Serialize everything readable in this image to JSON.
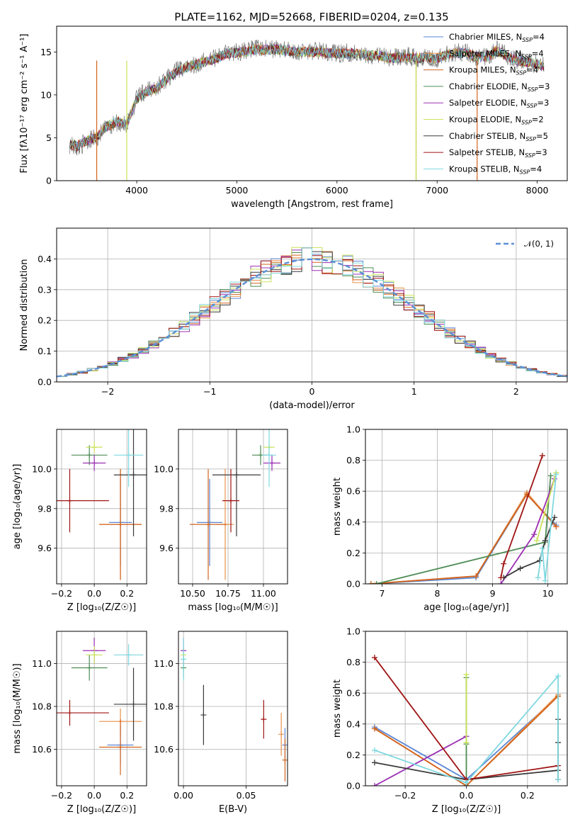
{
  "title": "PLATE=1162, MJD=52668, FIBERID=0204, z=0.135",
  "colors": {
    "Chabrier MILES": "#5b86d4",
    "Salpeter MILES": "#e8914a",
    "Kroupa MILES": "#d2641e",
    "Chabrier ELODIE": "#4e8c54",
    "Salpeter ELODIE": "#9b2fb4",
    "Kroupa ELODIE": "#c9e35a",
    "Chabrier STELIB": "#3a3a3a",
    "Salpeter STELIB": "#a01414",
    "Kroupa STELIB": "#7fd8e0",
    "Normal": "#5b8fd6",
    "grid": "#b0b0b0"
  },
  "legend": [
    {
      "label": "Chabrier MILES, N",
      "sub": "SSP",
      "tail": "=4",
      "color": "Chabrier MILES"
    },
    {
      "label": "Salpeter MILES, N",
      "sub": "SSP",
      "tail": "=4",
      "color": "Salpeter MILES"
    },
    {
      "label": "Kroupa MILES, N",
      "sub": "SSP",
      "tail": "=4",
      "color": "Kroupa MILES"
    },
    {
      "label": "Chabrier ELODIE, N",
      "sub": "SSP",
      "tail": "=3",
      "color": "Chabrier ELODIE"
    },
    {
      "label": "Salpeter ELODIE, N",
      "sub": "SSP",
      "tail": "=3",
      "color": "Salpeter ELODIE"
    },
    {
      "label": "Kroupa ELODIE, N",
      "sub": "SSP",
      "tail": "=2",
      "color": "Kroupa ELODIE"
    },
    {
      "label": "Chabrier STELIB, N",
      "sub": "SSP",
      "tail": "=5",
      "color": "Chabrier STELIB"
    },
    {
      "label": "Salpeter STELIB, N",
      "sub": "SSP",
      "tail": "=3",
      "color": "Salpeter STELIB"
    },
    {
      "label": "Kroupa STELIB, N",
      "sub": "SSP",
      "tail": "=4",
      "color": "Kroupa STELIB"
    }
  ],
  "chart_data": [
    {
      "id": "spectrum",
      "type": "line",
      "xlabel": "wavelength [Angstrom, rest frame]",
      "ylabel": "Flux [fλ10⁻¹⁷ erg cm⁻² s⁻¹ A⁻¹]",
      "xlim": [
        3200,
        8300
      ],
      "ylim": [
        0,
        18
      ],
      "xticks": [
        4000,
        5000,
        6000,
        7000,
        8000
      ],
      "yticks": [
        0,
        5,
        10,
        15
      ],
      "x": [
        3330,
        3400,
        3500,
        3600,
        3700,
        3800,
        3900,
        3950,
        4000,
        4100,
        4200,
        4300,
        4400,
        4500,
        4600,
        4700,
        4800,
        4900,
        5000,
        5100,
        5200,
        5300,
        5400,
        5500,
        5600,
        5700,
        5800,
        5900,
        6000,
        6100,
        6200,
        6300,
        6400,
        6500,
        6600,
        6700,
        6800,
        6900,
        7000,
        7100,
        7200,
        7300,
        7400,
        7500,
        7600,
        7700,
        7800,
        7900,
        8000,
        8070
      ],
      "flux_data": [
        4.2,
        3.8,
        4.6,
        5.0,
        6.2,
        6.8,
        6.4,
        8.0,
        9.6,
        10.5,
        10.9,
        11.9,
        12.8,
        13.3,
        13.6,
        14.0,
        14.4,
        14.9,
        15.0,
        15.2,
        15.4,
        15.3,
        15.4,
        15.2,
        15.0,
        15.1,
        15.1,
        15.0,
        14.8,
        14.9,
        14.9,
        14.6,
        14.7,
        14.3,
        14.4,
        14.5,
        14.3,
        14.5,
        14.2,
        14.8,
        15.0,
        14.9,
        14.4,
        14.5,
        15.3,
        14.6,
        14.0,
        13.8,
        13.5,
        13.3
      ],
      "model_fit": [
        4.3,
        4.0,
        4.7,
        5.1,
        6.3,
        6.9,
        6.6,
        8.1,
        9.5,
        10.4,
        10.8,
        11.8,
        12.7,
        13.2,
        13.6,
        13.9,
        14.3,
        14.8,
        14.9,
        15.1,
        15.3,
        15.2,
        15.3,
        15.1,
        15.0,
        15.0,
        15.0,
        14.9,
        14.8,
        14.8,
        14.8,
        14.6,
        14.6,
        14.3,
        14.3,
        14.4,
        14.3,
        14.4,
        14.2,
        14.7,
        14.9,
        14.8,
        14.4,
        14.4,
        15.2,
        14.5,
        14.0,
        13.8,
        13.5,
        13.3
      ],
      "masked_spikes": [
        {
          "x": 3600,
          "color": "Kroupa MILES"
        },
        {
          "x": 3900,
          "color": "Kroupa ELODIE"
        },
        {
          "x": 6790,
          "color": "Kroupa MILES"
        },
        {
          "x": 6790,
          "color": "Kroupa ELODIE"
        },
        {
          "x": 7400,
          "color": "Kroupa MILES"
        }
      ]
    },
    {
      "id": "residuals",
      "type": "histogram",
      "xlabel": "(data-model)/error",
      "ylabel": "Normed distribution",
      "xlim": [
        -2.5,
        2.5
      ],
      "ylim": [
        0,
        0.5
      ],
      "xticks": [
        -2,
        -1,
        0,
        1,
        2
      ],
      "yticks": [
        0.0,
        0.1,
        0.2,
        0.3,
        0.4
      ],
      "bin_width": 0.1,
      "normal_label": "𝒩(0, 1)"
    },
    {
      "id": "age_vs_Z",
      "type": "errorbar",
      "xlabel": "Z [log₁₀(Z/Z☉)]",
      "ylabel": "age  [log₁₀(age/yr)]",
      "xlim": [
        -0.23,
        0.32
      ],
      "ylim": [
        9.42,
        10.2
      ],
      "xticks": [
        -0.2,
        0.0,
        0.2
      ],
      "yticks": [
        9.6,
        9.8,
        10.0
      ],
      "points": [
        {
          "model": "Chabrier MILES",
          "x": 0.16,
          "y": 9.73,
          "xerr": 0.07,
          "yerr": 0.22
        },
        {
          "model": "Salpeter MILES",
          "x": 0.16,
          "y": 9.72,
          "xerr": 0.13,
          "yerr": 0.28
        },
        {
          "model": "Kroupa MILES",
          "x": 0.16,
          "y": 9.72,
          "xerr": 0.13,
          "yerr": 0.28
        },
        {
          "model": "Chabrier ELODIE",
          "x": -0.03,
          "y": 10.07,
          "xerr": 0.11,
          "yerr": 0.05
        },
        {
          "model": "Salpeter ELODIE",
          "x": 0.0,
          "y": 10.03,
          "xerr": 0.07,
          "yerr": 0.04
        },
        {
          "model": "Kroupa ELODIE",
          "x": 0.0,
          "y": 10.11,
          "xerr": 0.05,
          "yerr": 0.03
        },
        {
          "model": "Chabrier STELIB",
          "x": 0.24,
          "y": 9.97,
          "xerr": 0.12,
          "yerr": 0.31
        },
        {
          "model": "Salpeter STELIB",
          "x": -0.15,
          "y": 9.84,
          "xerr": 0.24,
          "yerr": 0.16
        },
        {
          "model": "Kroupa STELIB",
          "x": 0.21,
          "y": 10.07,
          "xerr": 0.09,
          "yerr": 0.16
        }
      ]
    },
    {
      "id": "age_vs_mass",
      "type": "errorbar",
      "xlabel": "mass [log₁₀(M/M☉)]",
      "ylabel": "",
      "xlim": [
        10.4,
        11.17
      ],
      "ylim": [
        9.42,
        10.2
      ],
      "xticks": [
        10.5,
        10.75,
        11.0
      ],
      "yticks": [
        9.6,
        9.8,
        10.0
      ],
      "points": [
        {
          "model": "Chabrier MILES",
          "x": 10.62,
          "y": 9.73,
          "xerr": 0.09,
          "yerr": 0.22
        },
        {
          "model": "Salpeter MILES",
          "x": 10.73,
          "y": 9.72,
          "xerr": 0.06,
          "yerr": 0.28
        },
        {
          "model": "Kroupa MILES",
          "x": 10.61,
          "y": 9.72,
          "xerr": 0.13,
          "yerr": 0.28
        },
        {
          "model": "Chabrier ELODIE",
          "x": 10.98,
          "y": 10.07,
          "xerr": 0.06,
          "yerr": 0.05
        },
        {
          "model": "Salpeter ELODIE",
          "x": 11.06,
          "y": 10.03,
          "xerr": 0.06,
          "yerr": 0.04
        },
        {
          "model": "Kroupa ELODIE",
          "x": 11.04,
          "y": 10.11,
          "xerr": 0.04,
          "yerr": 0.03
        },
        {
          "model": "Chabrier STELIB",
          "x": 10.81,
          "y": 9.97,
          "xerr": 0.17,
          "yerr": 0.31
        },
        {
          "model": "Salpeter STELIB",
          "x": 10.77,
          "y": 9.84,
          "xerr": 0.06,
          "yerr": 0.16
        },
        {
          "model": "Kroupa STELIB",
          "x": 11.04,
          "y": 10.07,
          "xerr": 0.05,
          "yerr": 0.16
        }
      ]
    },
    {
      "id": "massweight_vs_age",
      "type": "line",
      "xlabel": "age  [log₁₀(age/yr)]",
      "ylabel": "mass weight",
      "xlim": [
        6.7,
        10.35
      ],
      "ylim": [
        0,
        1.0
      ],
      "xticks": [
        7,
        8,
        9,
        10
      ],
      "yticks": [
        0.0,
        0.2,
        0.4,
        0.6,
        0.8,
        1.0
      ],
      "series": [
        {
          "model": "Chabrier MILES",
          "x": [
            6.8,
            8.7,
            9.62,
            10.15
          ],
          "y": [
            0.0,
            0.04,
            0.58,
            0.38
          ]
        },
        {
          "model": "Salpeter MILES",
          "x": [
            6.8,
            8.7,
            9.62,
            10.15
          ],
          "y": [
            0.0,
            0.05,
            0.59,
            0.37
          ]
        },
        {
          "model": "Kroupa MILES",
          "x": [
            6.8,
            8.7,
            9.62,
            10.15
          ],
          "y": [
            0.0,
            0.05,
            0.58,
            0.37
          ]
        },
        {
          "model": "Chabrier ELODIE",
          "x": [
            6.9,
            9.95,
            10.05
          ],
          "y": [
            0.0,
            0.27,
            0.7
          ]
        },
        {
          "model": "Salpeter ELODIE",
          "x": [
            9.15,
            9.75,
            10.12
          ],
          "y": [
            0.0,
            0.32,
            0.68
          ]
        },
        {
          "model": "Kroupa ELODIE",
          "x": [
            9.8,
            10.15
          ],
          "y": [
            0.28,
            0.72
          ]
        },
        {
          "model": "Chabrier STELIB",
          "x": [
            9.2,
            9.5,
            9.85,
            9.95,
            10.12
          ],
          "y": [
            0.04,
            0.1,
            0.15,
            0.28,
            0.43
          ]
        },
        {
          "model": "Salpeter STELIB",
          "x": [
            9.15,
            9.2,
            9.9
          ],
          "y": [
            0.04,
            0.13,
            0.83
          ]
        },
        {
          "model": "Kroupa STELIB",
          "x": [
            9.82,
            9.9,
            9.95,
            10.15
          ],
          "y": [
            0.04,
            0.23,
            0.02,
            0.71
          ]
        }
      ]
    },
    {
      "id": "mass_vs_Z",
      "type": "errorbar",
      "xlabel": "Z [log₁₀(Z/Z☉)]",
      "ylabel": "mass [log₁₀(M/M☉)]",
      "xlim": [
        -0.23,
        0.32
      ],
      "ylim": [
        10.43,
        11.15
      ],
      "xticks": [
        -0.2,
        0.0,
        0.2
      ],
      "yticks": [
        10.6,
        10.8,
        11.0
      ],
      "points": [
        {
          "model": "Chabrier MILES",
          "x": 0.16,
          "y": 10.62,
          "xerr": 0.08,
          "yerr": 0.09
        },
        {
          "model": "Salpeter MILES",
          "x": 0.16,
          "y": 10.73,
          "xerr": 0.13,
          "yerr": 0.06
        },
        {
          "model": "Kroupa MILES",
          "x": 0.16,
          "y": 10.61,
          "xerr": 0.13,
          "yerr": 0.13
        },
        {
          "model": "Chabrier ELODIE",
          "x": -0.03,
          "y": 10.98,
          "xerr": 0.11,
          "yerr": 0.06
        },
        {
          "model": "Salpeter ELODIE",
          "x": 0.0,
          "y": 11.06,
          "xerr": 0.07,
          "yerr": 0.06
        },
        {
          "model": "Kroupa ELODIE",
          "x": 0.0,
          "y": 11.04,
          "xerr": 0.05,
          "yerr": 0.04
        },
        {
          "model": "Chabrier STELIB",
          "x": 0.24,
          "y": 10.81,
          "xerr": 0.12,
          "yerr": 0.17
        },
        {
          "model": "Salpeter STELIB",
          "x": -0.15,
          "y": 10.77,
          "xerr": 0.24,
          "yerr": 0.06
        },
        {
          "model": "Kroupa STELIB",
          "x": 0.21,
          "y": 11.04,
          "xerr": 0.09,
          "yerr": 0.05
        }
      ]
    },
    {
      "id": "mass_vs_EBV",
      "type": "errorbar",
      "xlabel": "E(B-V)",
      "ylabel": "",
      "xlim": [
        -0.004,
        0.083
      ],
      "ylim": [
        10.43,
        11.15
      ],
      "xticks": [
        0.0,
        0.05
      ],
      "yticks": [
        10.6,
        10.8,
        11.0
      ],
      "points": [
        {
          "model": "Chabrier MILES",
          "x": 0.081,
          "y": 10.62,
          "xerr": 0.0,
          "yerr": 0.08
        },
        {
          "model": "Salpeter MILES",
          "x": 0.078,
          "y": 10.67,
          "xerr": 0.0,
          "yerr": 0.1
        },
        {
          "model": "Kroupa MILES",
          "x": 0.081,
          "y": 10.55,
          "xerr": 0.0,
          "yerr": 0.1
        },
        {
          "model": "Chabrier ELODIE",
          "x": 0.0,
          "y": 10.98,
          "xerr": 0.0,
          "yerr": 0.05
        },
        {
          "model": "Salpeter ELODIE",
          "x": 0.0,
          "y": 11.06,
          "xerr": 0.0,
          "yerr": 0.06
        },
        {
          "model": "Kroupa ELODIE",
          "x": 0.0,
          "y": 11.04,
          "xerr": 0.0,
          "yerr": 0.04
        },
        {
          "model": "Chabrier STELIB",
          "x": 0.016,
          "y": 10.76,
          "xerr": 0.0,
          "yerr": 0.14
        },
        {
          "model": "Salpeter STELIB",
          "x": 0.064,
          "y": 10.74,
          "xerr": 0.0,
          "yerr": 0.09
        },
        {
          "model": "Kroupa STELIB",
          "x": 0.0,
          "y": 11.02,
          "xerr": 0.0,
          "yerr": 0.1
        }
      ]
    },
    {
      "id": "massweight_vs_Z",
      "type": "line",
      "xlabel": "Z [log₁₀(Z/Z☉)]",
      "ylabel": "mass weight",
      "xlim": [
        -0.33,
        0.33
      ],
      "ylim": [
        0,
        1.0
      ],
      "xticks": [
        -0.2,
        0.0,
        0.2
      ],
      "yticks": [
        0.0,
        0.2,
        0.4,
        0.6,
        0.8,
        1.0
      ],
      "series": [
        {
          "model": "Chabrier MILES",
          "x": [
            -0.3,
            0.0,
            0.3
          ],
          "y": [
            0.38,
            0.04,
            0.58
          ]
        },
        {
          "model": "Salpeter MILES",
          "x": [
            -0.3,
            0.0,
            0.3
          ],
          "y": [
            0.37,
            0.0,
            0.59
          ]
        },
        {
          "model": "Kroupa MILES",
          "x": [
            -0.3,
            0.0,
            0.3
          ],
          "y": [
            0.37,
            0.0,
            0.58
          ]
        },
        {
          "model": "Chabrier ELODIE",
          "x": [
            0.0,
            0.0,
            0.0
          ],
          "y": [
            0.0,
            0.27,
            0.7
          ]
        },
        {
          "model": "Salpeter ELODIE",
          "x": [
            -0.3,
            0.0
          ],
          "y": [
            0.0,
            0.32
          ]
        },
        {
          "model": "Kroupa ELODIE",
          "x": [
            0.0,
            0.0
          ],
          "y": [
            0.28,
            0.72
          ]
        },
        {
          "model": "Chabrier STELIB",
          "x": [
            -0.3,
            0.0,
            0.3,
            0.3,
            0.3,
            0.3
          ],
          "y": [
            0.15,
            0.04,
            0.1,
            0.28,
            0.43,
            0.04
          ]
        },
        {
          "model": "Salpeter STELIB",
          "x": [
            -0.3,
            0.0,
            0.3
          ],
          "y": [
            0.83,
            0.04,
            0.13
          ]
        },
        {
          "model": "Kroupa STELIB",
          "x": [
            -0.3,
            0.0,
            0.3,
            0.3
          ],
          "y": [
            0.23,
            0.02,
            0.71,
            0.04
          ]
        }
      ]
    }
  ]
}
